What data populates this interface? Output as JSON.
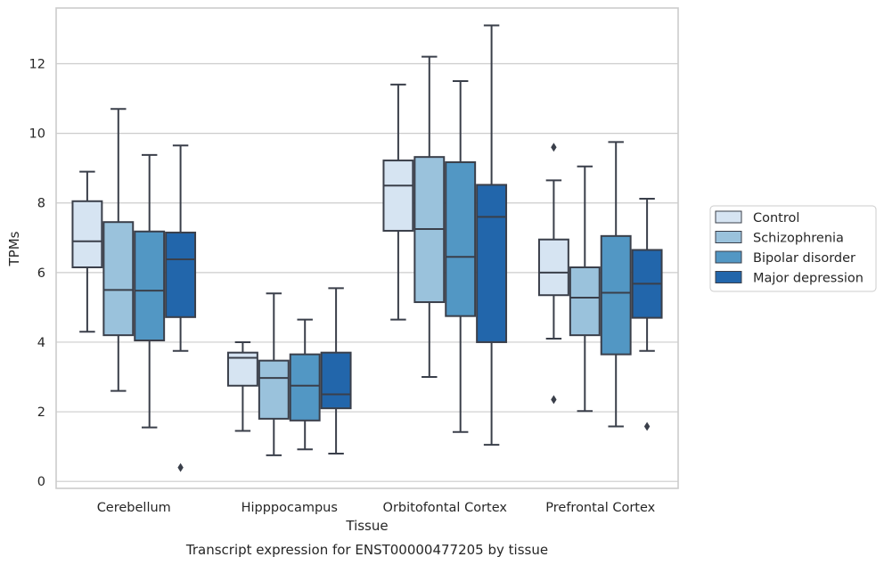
{
  "chart_data": {
    "type": "box",
    "xlabel": "Tissue",
    "ylabel": "TPMs",
    "caption": "Transcript expression for ENST00000477205 by tissue",
    "ylim": [
      -0.2,
      13.6
    ],
    "yticks": [
      "0",
      "2",
      "4",
      "6",
      "8",
      "10",
      "12"
    ],
    "grid": "horizontal",
    "legend_position": "right",
    "categories": [
      "Cerebellum",
      "Hipppocampus",
      "Orbitofontal Cortex",
      "Prefrontal Cortex"
    ],
    "series": [
      {
        "name": "Control",
        "color": "#d6e4f2",
        "boxes": [
          {
            "whisker_low": 4.3,
            "q1": 6.15,
            "median": 6.9,
            "q3": 8.05,
            "whisker_high": 8.9,
            "outliers": []
          },
          {
            "whisker_low": 1.45,
            "q1": 2.75,
            "median": 3.55,
            "q3": 3.7,
            "whisker_high": 4.0,
            "outliers": []
          },
          {
            "whisker_low": 4.65,
            "q1": 7.2,
            "median": 8.5,
            "q3": 9.22,
            "whisker_high": 11.4,
            "outliers": []
          },
          {
            "whisker_low": 4.1,
            "q1": 5.35,
            "median": 6.0,
            "q3": 6.95,
            "whisker_high": 8.65,
            "outliers": [
              9.6,
              2.35
            ]
          }
        ]
      },
      {
        "name": "Schizophrenia",
        "color": "#9ac2dc",
        "boxes": [
          {
            "whisker_low": 2.6,
            "q1": 4.2,
            "median": 5.5,
            "q3": 7.45,
            "whisker_high": 10.7,
            "outliers": []
          },
          {
            "whisker_low": 0.75,
            "q1": 1.8,
            "median": 2.97,
            "q3": 3.47,
            "whisker_high": 5.4,
            "outliers": []
          },
          {
            "whisker_low": 3.0,
            "q1": 5.15,
            "median": 7.25,
            "q3": 9.32,
            "whisker_high": 12.2,
            "outliers": []
          },
          {
            "whisker_low": 2.02,
            "q1": 4.2,
            "median": 5.28,
            "q3": 6.15,
            "whisker_high": 9.05,
            "outliers": []
          }
        ]
      },
      {
        "name": "Bipolar disorder",
        "color": "#5297c4",
        "boxes": [
          {
            "whisker_low": 1.55,
            "q1": 4.05,
            "median": 5.48,
            "q3": 7.18,
            "whisker_high": 9.38,
            "outliers": []
          },
          {
            "whisker_low": 0.92,
            "q1": 1.75,
            "median": 2.75,
            "q3": 3.65,
            "whisker_high": 4.65,
            "outliers": []
          },
          {
            "whisker_low": 1.42,
            "q1": 4.75,
            "median": 6.45,
            "q3": 9.17,
            "whisker_high": 11.5,
            "outliers": []
          },
          {
            "whisker_low": 1.58,
            "q1": 3.65,
            "median": 5.42,
            "q3": 7.05,
            "whisker_high": 9.75,
            "outliers": []
          }
        ]
      },
      {
        "name": "Major depression",
        "color": "#2266ab",
        "boxes": [
          {
            "whisker_low": 3.75,
            "q1": 4.72,
            "median": 6.38,
            "q3": 7.15,
            "whisker_high": 9.65,
            "outliers": [
              0.4
            ]
          },
          {
            "whisker_low": 0.8,
            "q1": 2.1,
            "median": 2.5,
            "q3": 3.7,
            "whisker_high": 5.55,
            "outliers": []
          },
          {
            "whisker_low": 1.05,
            "q1": 4.0,
            "median": 7.6,
            "q3": 8.52,
            "whisker_high": 13.1,
            "outliers": []
          },
          {
            "whisker_low": 3.75,
            "q1": 4.7,
            "median": 5.68,
            "q3": 6.65,
            "whisker_high": 8.12,
            "outliers": [
              1.58
            ]
          }
        ]
      }
    ]
  }
}
